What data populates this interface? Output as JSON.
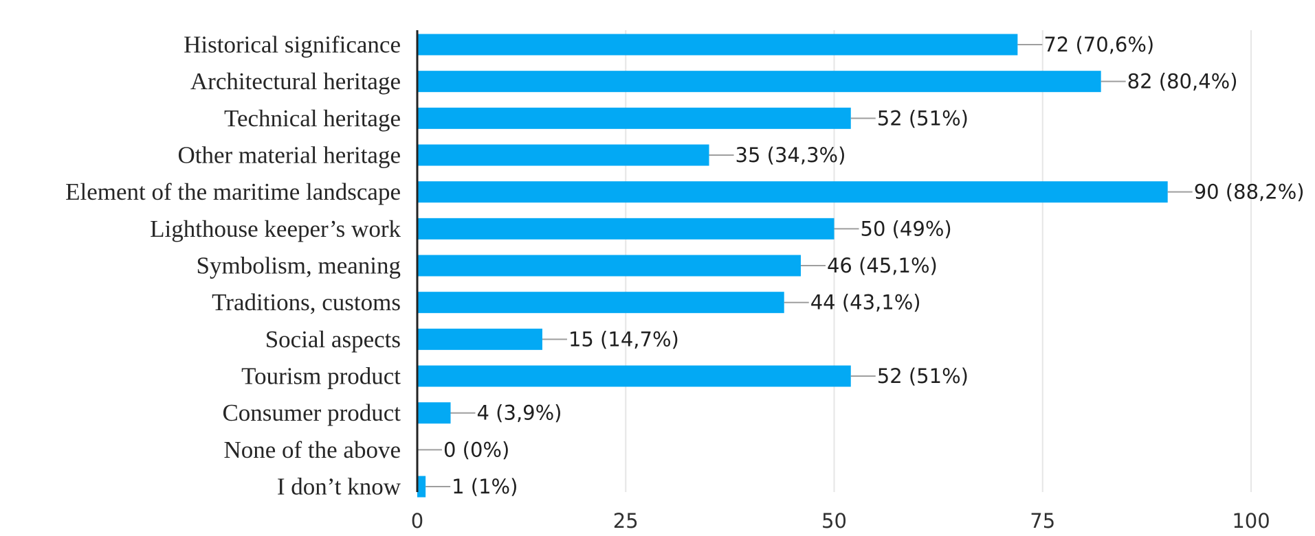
{
  "chart_data": {
    "type": "bar",
    "orientation": "horizontal",
    "title": "",
    "xlabel": "",
    "ylabel": "",
    "xlim": [
      0,
      100
    ],
    "x_ticks": [
      0,
      25,
      50,
      75,
      100
    ],
    "grid": true,
    "legend": "none",
    "bar_color": "#03a9f4",
    "categories": [
      "Historical significance",
      "Architectural heritage",
      "Technical heritage",
      "Other material heritage",
      "Element of the maritime landscape",
      "Lighthouse keeper’s work",
      "Symbolism, meaning",
      "Traditions, customs",
      "Social aspects",
      "Tourism product",
      "Consumer product",
      "None of the above",
      "I don’t know"
    ],
    "values": [
      72,
      82,
      52,
      35,
      90,
      50,
      46,
      44,
      15,
      52,
      4,
      0,
      1
    ],
    "data_labels": [
      "72 (70,6%)",
      "82 (80,4%)",
      "52 (51%)",
      "35 (34,3%)",
      "90 (88,2%)",
      "50 (49%)",
      "46 (45,1%)",
      "44 (43,1%)",
      "15 (14,7%)",
      "52 (51%)",
      "4 (3,9%)",
      "0 (0%)",
      "1 (1%)"
    ]
  }
}
